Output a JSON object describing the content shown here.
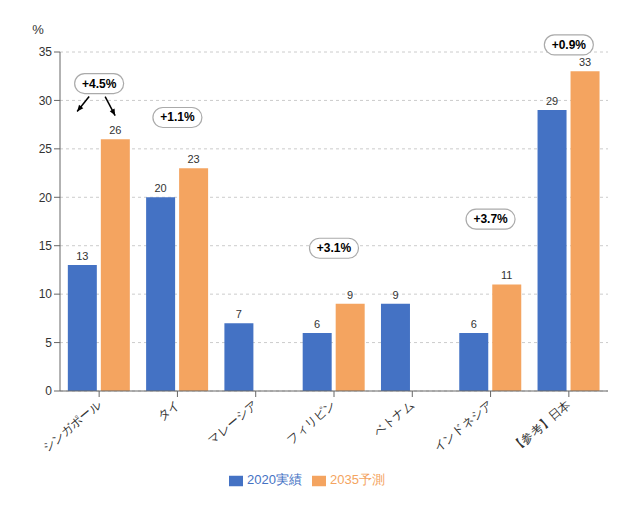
{
  "chart_data": {
    "type": "bar",
    "ylabel": "%",
    "categories": [
      "シンガポール",
      "タイ",
      "マレーシア",
      "フィリピン",
      "ベトナム",
      "インドネシア",
      "【参考】日本"
    ],
    "series": [
      {
        "name": "2020実績",
        "color": "#4472C4",
        "values": [
          13,
          20,
          7,
          6,
          9,
          6,
          29
        ]
      },
      {
        "name": "2035予測",
        "color": "#F4A460",
        "values": [
          26,
          23,
          0,
          9,
          0,
          11,
          33
        ]
      }
    ],
    "ylim": [
      0,
      35
    ],
    "yticks": [
      0,
      5,
      10,
      15,
      20,
      25,
      30,
      35
    ],
    "grid": true,
    "legend": "bottom",
    "data_labels": true,
    "annotations": [
      {
        "text": "+4.5%",
        "category": "シンガポール",
        "y": 30.5,
        "arrow": true
      },
      {
        "text": "+1.1%",
        "category": "タイ",
        "y": 27.0,
        "arrow": false
      },
      {
        "text": "+3.1%",
        "category": "フィリピン",
        "y": 13.5,
        "arrow": false
      },
      {
        "text": "+3.7%",
        "category": "インドネシア",
        "y": 16.5,
        "arrow": false
      },
      {
        "text": "+0.9%",
        "category": "【参考】日本",
        "y": 34.5,
        "arrow": false
      }
    ]
  }
}
